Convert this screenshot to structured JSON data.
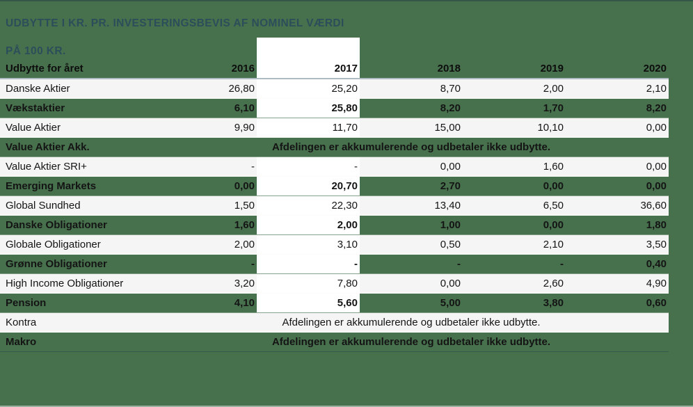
{
  "title": {
    "line1": "UDBYTTE I KR. PR. INVESTERINGSBEVIS AF NOMINEL VÆRDI",
    "line2": "PÅ 100 KR."
  },
  "table": {
    "header": {
      "label": "Udbytte for året",
      "years": [
        "2016",
        "2017",
        "2018",
        "2019",
        "2020"
      ]
    },
    "highlight_year": "2017",
    "note_text": "Afdelingen er akkumulerende og udbetaler ikke udbytte.",
    "rows": [
      {
        "name": "Danske Aktier",
        "variant": "light",
        "values": [
          "26,80",
          "25,20",
          "8,70",
          "2,00",
          "2,10"
        ]
      },
      {
        "name": "Vækstaktier",
        "variant": "green",
        "values": [
          "6,10",
          "25,80",
          "8,20",
          "1,70",
          "8,20"
        ]
      },
      {
        "name": "Value Aktier",
        "variant": "light",
        "values": [
          "9,90",
          "11,70",
          "15,00",
          "10,10",
          "0,00"
        ]
      },
      {
        "name": "Value Aktier Akk.",
        "variant": "green",
        "note": true
      },
      {
        "name": "Value Aktier SRI+",
        "variant": "light",
        "values": [
          "-",
          "-",
          "0,00",
          "1,60",
          "0,00"
        ]
      },
      {
        "name": "Emerging Markets",
        "variant": "green",
        "values": [
          "0,00",
          "20,70",
          "2,70",
          "0,00",
          "0,00"
        ]
      },
      {
        "name": "Global Sundhed",
        "variant": "light",
        "values": [
          "1,50",
          "22,30",
          "13,40",
          "6,50",
          "36,60"
        ]
      },
      {
        "name": "Danske Obligationer",
        "variant": "green",
        "values": [
          "1,60",
          "2,00",
          "1,00",
          "0,00",
          "1,80"
        ]
      },
      {
        "name": "Globale Obligationer",
        "variant": "light",
        "values": [
          "2,00",
          "3,10",
          "0,50",
          "2,10",
          "3,50"
        ]
      },
      {
        "name": "Grønne Obligationer",
        "variant": "green",
        "values": [
          "-",
          "-",
          "-",
          "-",
          "0,40"
        ]
      },
      {
        "name": "High Income Obligationer",
        "variant": "light",
        "values": [
          "3,20",
          "7,80",
          "0,00",
          "2,60",
          "4,90"
        ]
      },
      {
        "name": "Pension",
        "variant": "green",
        "values": [
          "4,10",
          "5,60",
          "5,00",
          "3,80",
          "0,60"
        ]
      },
      {
        "name": "Kontra",
        "variant": "light",
        "note": true
      },
      {
        "name": "Makro",
        "variant": "green",
        "note": true
      }
    ]
  },
  "colors": {
    "background_green": "#47704D",
    "light_row": "#f5f5f5",
    "highlight_column": "#ffffff",
    "header_border": "#AEBBC3",
    "title_text": "#2B4F5A",
    "body_text": "#141414"
  },
  "chart_data": {
    "type": "table",
    "title": "UDBYTTE I KR. PR. INVESTERINGSBEVIS AF NOMINEL VÆRDI PÅ 100 KR.",
    "columns": [
      "Udbytte for året",
      "2016",
      "2017",
      "2018",
      "2019",
      "2020"
    ],
    "highlighted_column": "2017",
    "note": "Afdelingen er akkumulerende og udbetaler ikke udbytte.",
    "series": [
      {
        "name": "Danske Aktier",
        "values": [
          26.8,
          25.2,
          8.7,
          2.0,
          2.1
        ]
      },
      {
        "name": "Vækstaktier",
        "values": [
          6.1,
          25.8,
          8.2,
          1.7,
          8.2
        ]
      },
      {
        "name": "Value Aktier",
        "values": [
          9.9,
          11.7,
          15.0,
          10.1,
          0.0
        ]
      },
      {
        "name": "Value Aktier Akk.",
        "values": [
          null,
          null,
          null,
          null,
          null
        ],
        "accumulating": true
      },
      {
        "name": "Value Aktier SRI+",
        "values": [
          null,
          null,
          0.0,
          1.6,
          0.0
        ]
      },
      {
        "name": "Emerging Markets",
        "values": [
          0.0,
          20.7,
          2.7,
          0.0,
          0.0
        ]
      },
      {
        "name": "Global Sundhed",
        "values": [
          1.5,
          22.3,
          13.4,
          6.5,
          36.6
        ]
      },
      {
        "name": "Danske Obligationer",
        "values": [
          1.6,
          2.0,
          1.0,
          0.0,
          1.8
        ]
      },
      {
        "name": "Globale Obligationer",
        "values": [
          2.0,
          3.1,
          0.5,
          2.1,
          3.5
        ]
      },
      {
        "name": "Grønne Obligationer",
        "values": [
          null,
          null,
          null,
          null,
          0.4
        ]
      },
      {
        "name": "High Income Obligationer",
        "values": [
          3.2,
          7.8,
          0.0,
          2.6,
          4.9
        ]
      },
      {
        "name": "Pension",
        "values": [
          4.1,
          5.6,
          5.0,
          3.8,
          0.6
        ]
      },
      {
        "name": "Kontra",
        "values": [
          null,
          null,
          null,
          null,
          null
        ],
        "accumulating": true
      },
      {
        "name": "Makro",
        "values": [
          null,
          null,
          null,
          null,
          null
        ],
        "accumulating": true
      }
    ]
  }
}
